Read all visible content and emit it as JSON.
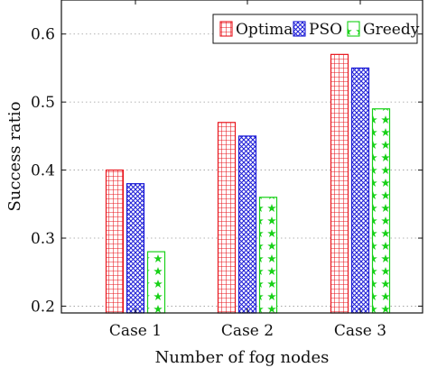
{
  "chart_data": {
    "type": "bar",
    "categories": [
      "Case 1",
      "Case 2",
      "Case 3"
    ],
    "series": [
      {
        "name": "Optimal",
        "values": [
          0.4,
          0.47,
          0.57
        ],
        "color": "#e8141c",
        "pattern": "grid"
      },
      {
        "name": "PSO",
        "values": [
          0.38,
          0.45,
          0.55
        ],
        "color": "#1b1bd6",
        "pattern": "crosshatch"
      },
      {
        "name": "Greedy",
        "values": [
          0.28,
          0.36,
          0.49
        ],
        "color": "#19d119",
        "pattern": "stars"
      }
    ],
    "title": "",
    "xlabel": "Number of fog nodes",
    "ylabel": "Success ratio",
    "ylim": [
      0.19,
      0.65
    ],
    "yticks": [
      0.2,
      0.3,
      0.4,
      0.5,
      0.6
    ],
    "ytick_labels": [
      "0.2",
      "0.3",
      "0.4",
      "0.5",
      "0.6"
    ],
    "grid": "horizontal dotted",
    "legend": "top-right"
  }
}
